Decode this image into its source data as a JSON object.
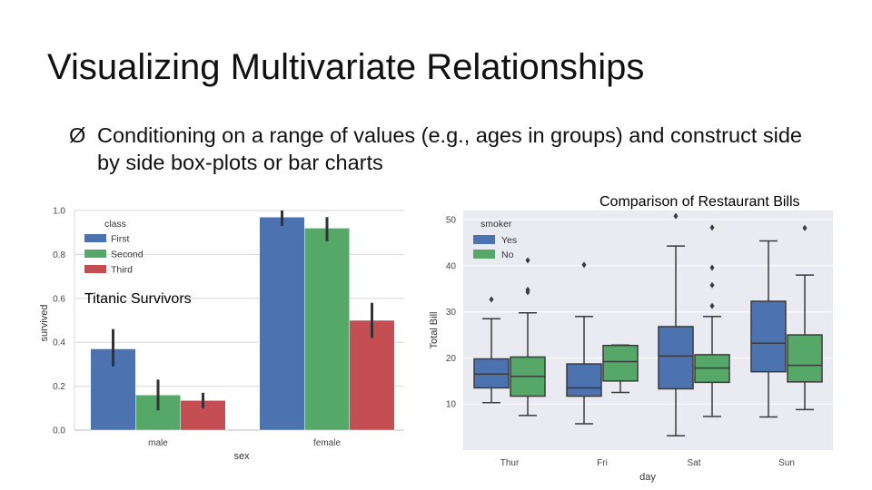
{
  "slide": {
    "title": "Visualizing Multivariate Relationships",
    "bullet_marker": "Ø",
    "bullet_text": "Conditioning on a range of values (e.g., ages in groups) and construct side by side box-plots or bar charts",
    "caption_left": "Titanic Survivors",
    "caption_right": "Comparison of Restaurant Bills"
  },
  "colors": {
    "blue": "#4c72b0",
    "green": "#55a868",
    "red": "#c44e52",
    "panel": "#eaeaf2",
    "line": "#333333",
    "box_edge": "#3a3a3a"
  },
  "chart_data": [
    {
      "type": "bar",
      "title": "Titanic Survivors",
      "xlabel": "sex",
      "ylabel": "survived",
      "ylim": [
        0,
        1.0
      ],
      "yticks": [
        "0.0",
        "0.2",
        "0.4",
        "0.6",
        "0.8",
        "1.0"
      ],
      "categories": [
        "male",
        "female"
      ],
      "legend_title": "class",
      "legend_position": "top-left",
      "series": [
        {
          "name": "First",
          "color": "#4c72b0",
          "values": [
            0.37,
            0.97
          ],
          "ci": [
            [
              0.29,
              0.46
            ],
            [
              0.93,
              1.0
            ]
          ]
        },
        {
          "name": "Second",
          "color": "#55a868",
          "values": [
            0.16,
            0.92
          ],
          "ci": [
            [
              0.09,
              0.23
            ],
            [
              0.86,
              0.97
            ]
          ]
        },
        {
          "name": "Third",
          "color": "#c44e52",
          "values": [
            0.135,
            0.5
          ],
          "ci": [
            [
              0.1,
              0.17
            ],
            [
              0.42,
              0.58
            ]
          ]
        }
      ]
    },
    {
      "type": "box",
      "title": "Comparison of Restaurant Bills",
      "xlabel": "day",
      "ylabel": "Total Bill",
      "ylim": [
        0,
        52
      ],
      "yticks": [
        "10",
        "20",
        "30",
        "40",
        "50"
      ],
      "categories": [
        "Thur",
        "Fri",
        "Sat",
        "Sun"
      ],
      "legend_title": "smoker",
      "legend_position": "top-left",
      "series": [
        {
          "name": "Yes",
          "color": "#4c72b0",
          "boxes": [
            {
              "whislo": 10.3,
              "q1": 13.5,
              "med": 16.5,
              "q3": 19.8,
              "whishi": 28.5,
              "fliers": [
                32.7
              ]
            },
            {
              "whislo": 5.7,
              "q1": 11.7,
              "med": 13.5,
              "q3": 18.7,
              "whishi": 29.0,
              "fliers": [
                40.2
              ]
            },
            {
              "whislo": 3.1,
              "q1": 13.3,
              "med": 20.4,
              "q3": 26.8,
              "whishi": 44.3,
              "fliers": [
                50.8
              ]
            },
            {
              "whislo": 7.2,
              "q1": 17.0,
              "med": 23.2,
              "q3": 32.3,
              "whishi": 45.4,
              "fliers": []
            }
          ]
        },
        {
          "name": "No",
          "color": "#55a868",
          "boxes": [
            {
              "whislo": 7.5,
              "q1": 11.7,
              "med": 16.0,
              "q3": 20.2,
              "whishi": 29.8,
              "fliers": [
                34.8,
                34.3,
                41.2
              ]
            },
            {
              "whislo": null,
              "q1": 15.0,
              "med": 19.2,
              "q3": 22.7,
              "whishi": null,
              "fliers": [],
              "whiskers_low": 12.5,
              "whiskers_high": 22.8
            },
            {
              "whislo": 7.3,
              "q1": 14.7,
              "med": 17.8,
              "q3": 20.7,
              "whishi": 29.0,
              "fliers": [
                31.3,
                35.8,
                39.6,
                48.3
              ]
            },
            {
              "whislo": 8.8,
              "q1": 14.8,
              "med": 18.4,
              "q3": 25.0,
              "whishi": 38.0,
              "fliers": [
                48.2
              ]
            }
          ]
        }
      ]
    }
  ]
}
